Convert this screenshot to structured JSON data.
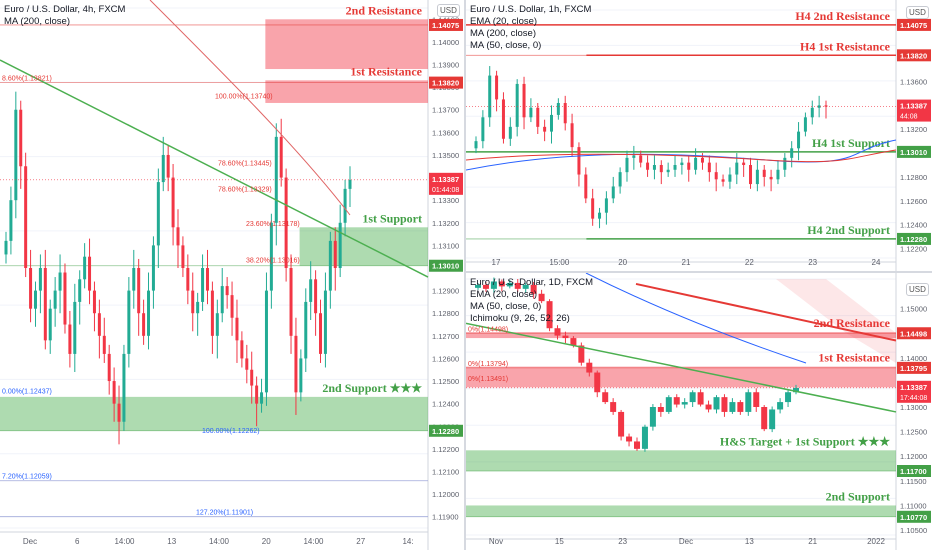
{
  "colors": {
    "resistance": "#e53935",
    "support": "#43a047",
    "up": "#22ab94",
    "down": "#f23645",
    "trendline_green": "#4caf50",
    "trendline_red": "#e53935",
    "ma_line": "#2962ff"
  },
  "panels": [
    {
      "id": "left",
      "legend": [
        "Euro / U.S. Dollar, 4h, FXCM",
        "MA (200, close)"
      ],
      "currency_button": "USD",
      "y_range": [
        1.1185,
        1.1415
      ],
      "y_ticks": [
        "1.14100",
        "1.14000",
        "1.13900",
        "1.13800",
        "1.13700",
        "1.13600",
        "1.13500",
        "1.13400",
        "1.13300",
        "1.13200",
        "1.13100",
        "1.12900",
        "1.12800",
        "1.12700",
        "1.12600",
        "1.12500",
        "1.12400",
        "1.12300",
        "1.12200",
        "1.12100",
        "1.12000",
        "1.11900"
      ],
      "x_labels": [
        "Dec",
        "6",
        "14:00",
        "13",
        "14:00",
        "20",
        "14:00",
        "27",
        "14:"
      ],
      "zones": [
        {
          "label": "2nd Resistance",
          "kind": "resistance",
          "price": 1.14075,
          "tag": "1.14075",
          "top": 1.141,
          "bottom": 1.1388,
          "x_from": 0.62
        },
        {
          "label": "1st Resistance",
          "kind": "resistance",
          "price": 1.1382,
          "tag": "1.13820",
          "top": 1.1383,
          "bottom": 1.1373,
          "x_from": 0.62
        },
        {
          "label": "1st Support",
          "kind": "support",
          "price": 1.1301,
          "tag": "1.13010",
          "top": 1.1318,
          "bottom": 1.1301,
          "x_from": 0.7
        },
        {
          "label": "2nd Support ★★★",
          "kind": "support",
          "price": 1.1228,
          "tag": "1.12280",
          "top": 1.1243,
          "bottom": 1.1228,
          "x_from": 0.0
        }
      ],
      "current_price_tag": "1.13387",
      "current_time_tag": "01:44:08",
      "fib_labels": [
        "8.60%(1.13821)",
        "100.00%(1.13740)",
        "78.60%(1.13445)",
        "78.60%(1.13329)",
        "23.60%(1.13178)",
        "38.20%(1.13016)",
        "0.00%(1.12437)",
        "100.00%(1.12262)",
        "7.20%(1.12059)",
        "127.20%(1.11901)"
      ]
    },
    {
      "id": "top-right",
      "legend": [
        "Euro / U.S. Dollar, 1h, FXCM",
        "EMA (20, close)",
        "MA (200, close)",
        "MA (50, close, 0)"
      ],
      "currency_button": "USD",
      "y_range": [
        1.1212,
        1.142
      ],
      "y_ticks": [
        "1.13800",
        "1.13600",
        "1.13400",
        "1.13200",
        "1.13000",
        "1.12800",
        "1.12600",
        "1.12400",
        "1.12200"
      ],
      "x_labels": [
        "17",
        "15:00",
        "20",
        "21",
        "22",
        "23",
        "24"
      ],
      "levels": [
        {
          "label": "H4 2nd Resistance",
          "kind": "resistance",
          "price": 1.14075,
          "tag": "1.14075"
        },
        {
          "label": "H4 1st Resistance",
          "kind": "resistance",
          "price": 1.1382,
          "tag": "1.13820"
        },
        {
          "label": "H4 1st Support",
          "kind": "support",
          "price": 1.1301,
          "tag": "1.13010"
        },
        {
          "label": "H4 2nd Support",
          "kind": "support",
          "price": 1.1228,
          "tag": "1.12280"
        }
      ],
      "current_price_tag": "1.13387",
      "current_time_tag": "44:08"
    },
    {
      "id": "bottom-right",
      "legend": [
        "Euro / U.S. Dollar, 1D, FXCM",
        "EMA (20, close)",
        "MA (50, close, 0)",
        "Ichimoku (9, 26, 52, 26)"
      ],
      "currency_button": "USD",
      "y_range": [
        1.104,
        1.156
      ],
      "y_ticks": [
        "1.15000",
        "1.14000",
        "1.13000",
        "1.12500",
        "1.12000",
        "1.11500",
        "1.11000",
        "1.10500"
      ],
      "x_labels": [
        "Nov",
        "15",
        "23",
        "Dec",
        "13",
        "21",
        "2022"
      ],
      "zones": [
        {
          "label": "2nd Resistance",
          "kind": "resistance",
          "price": 1.14498,
          "tag": "1.14498",
          "top": 1.1452,
          "bottom": 1.144
        },
        {
          "label": "1st Resistance",
          "kind": "resistance",
          "price": 1.13795,
          "tag": "1.13795",
          "top": 1.1382,
          "bottom": 1.134
        },
        {
          "label": "H&S Target + 1st Support ★★★",
          "kind": "support",
          "price": 1.117,
          "tag": "1.11700",
          "top": 1.1212,
          "bottom": 1.117
        },
        {
          "label": "2nd Support",
          "kind": "support",
          "price": 1.1077,
          "tag": "1.10770",
          "top": 1.11,
          "bottom": 1.1077
        }
      ],
      "current_price_tag": "1.13387",
      "current_time_tag": "17:44:08",
      "fib_labels": [
        "0%(1.14498)",
        "0%(1.13794)",
        "0%(1.13491)"
      ]
    }
  ],
  "chart_data": [
    {
      "type": "candlestick",
      "title": "Euro / U.S. Dollar, 4h, FXCM",
      "ylim": [
        1.1185,
        1.1415
      ],
      "closes": [
        1.1312,
        1.133,
        1.137,
        1.1345,
        1.13,
        1.1282,
        1.129,
        1.13,
        1.1268,
        1.1282,
        1.129,
        1.1298,
        1.1275,
        1.1262,
        1.1285,
        1.1295,
        1.1305,
        1.129,
        1.128,
        1.127,
        1.1262,
        1.125,
        1.124,
        1.1232,
        1.1262,
        1.129,
        1.13,
        1.128,
        1.127,
        1.129,
        1.131,
        1.1338,
        1.135,
        1.134,
        1.1318,
        1.131,
        1.13,
        1.129,
        1.128,
        1.1285,
        1.13,
        1.129,
        1.127,
        1.128,
        1.1292,
        1.1288,
        1.1278,
        1.1268,
        1.126,
        1.1255,
        1.1248,
        1.124,
        1.1245,
        1.129,
        1.132,
        1.1358,
        1.134,
        1.13,
        1.127,
        1.1245,
        1.126,
        1.1285,
        1.1295,
        1.128,
        1.1262,
        1.129,
        1.1312,
        1.13,
        1.132,
        1.1335,
        1.1339
      ]
    },
    {
      "type": "candlestick",
      "title": "Euro / U.S. Dollar, 1h, FXCM",
      "ylim": [
        1.1212,
        1.142
      ],
      "closes": [
        1.131,
        1.133,
        1.1365,
        1.1345,
        1.1312,
        1.1322,
        1.1358,
        1.133,
        1.1338,
        1.1322,
        1.1318,
        1.1332,
        1.1342,
        1.1325,
        1.1305,
        1.1282,
        1.1262,
        1.1245,
        1.125,
        1.1262,
        1.1272,
        1.1284,
        1.1296,
        1.1298,
        1.1292,
        1.1286,
        1.129,
        1.1284,
        1.1286,
        1.129,
        1.1292,
        1.1286,
        1.1296,
        1.1292,
        1.1284,
        1.1278,
        1.1276,
        1.1282,
        1.1292,
        1.129,
        1.1274,
        1.1286,
        1.128,
        1.1278,
        1.1286,
        1.1296,
        1.1304,
        1.1318,
        1.133,
        1.1338,
        1.134,
        1.1339
      ]
    },
    {
      "type": "candlestick",
      "title": "Euro / U.S. Dollar, 1D, FXCM",
      "ylim": [
        1.104,
        1.156
      ],
      "closes": [
        1.1548,
        1.154,
        1.1555,
        1.1545,
        1.1552,
        1.154,
        1.1548,
        1.153,
        1.1515,
        1.146,
        1.1445,
        1.144,
        1.1425,
        1.139,
        1.137,
        1.133,
        1.131,
        1.129,
        1.124,
        1.123,
        1.1215,
        1.126,
        1.13,
        1.129,
        1.132,
        1.1305,
        1.131,
        1.133,
        1.1305,
        1.1295,
        1.132,
        1.129,
        1.131,
        1.129,
        1.133,
        1.13,
        1.1255,
        1.1295,
        1.131,
        1.133,
        1.1339
      ]
    }
  ]
}
